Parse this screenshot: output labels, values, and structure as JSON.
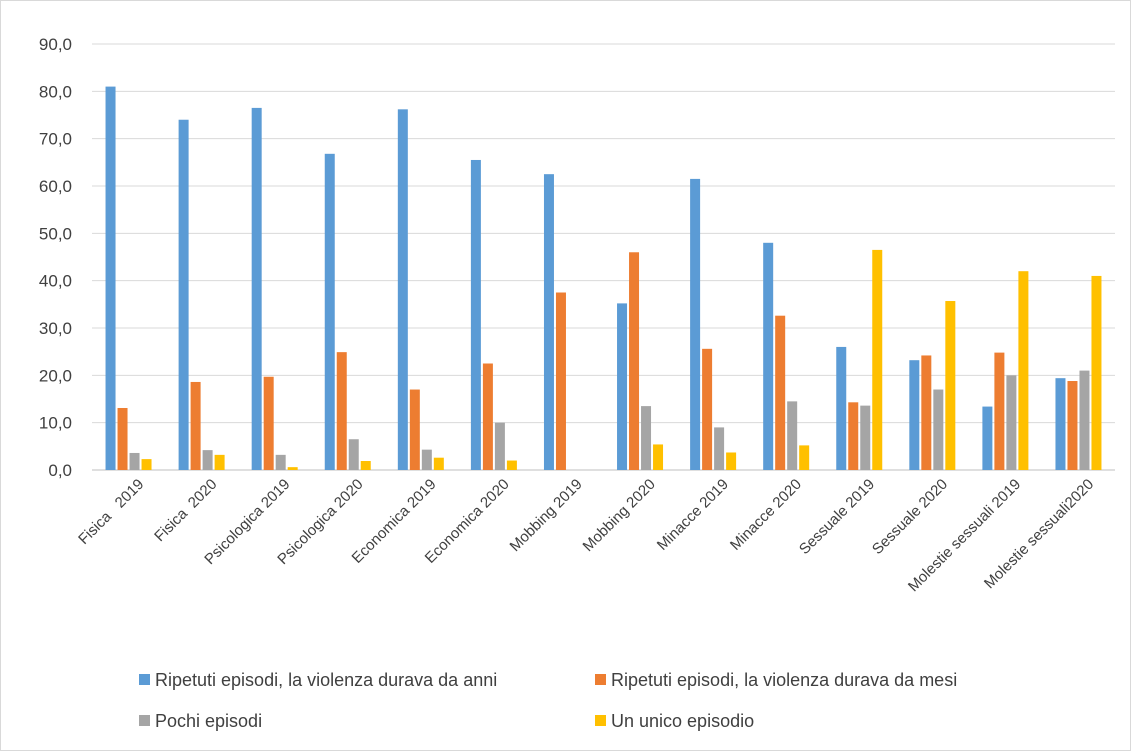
{
  "chart_data": {
    "type": "bar",
    "title": "",
    "xlabel": "",
    "ylabel": "",
    "ylim": [
      0,
      90
    ],
    "yticks": [
      "0,0",
      "10,0",
      "20,0",
      "30,0",
      "40,0",
      "50,0",
      "60,0",
      "70,0",
      "80,0",
      "90,0"
    ],
    "ytick_values": [
      0,
      10,
      20,
      30,
      40,
      50,
      60,
      70,
      80,
      90
    ],
    "grid": true,
    "legend_position": "bottom",
    "categories": [
      "Fisica   2019",
      "Fisica  2020",
      "Psicologica 2019",
      "Psicologica 2020",
      "Economica 2019",
      "Economica 2020",
      "Mobbing 2019",
      "Mobbing 2020",
      "Minacce 2019",
      "Minacce 2020",
      "Sessuale 2019",
      "Sessuale 2020",
      "Molestie sessuali 2019",
      "Molestie sessuali2020"
    ],
    "series": [
      {
        "name": "Ripetuti episodi, la violenza durava da anni",
        "color": "#5b9bd5",
        "values": [
          81.0,
          74.0,
          76.5,
          66.8,
          76.2,
          65.5,
          62.5,
          35.2,
          61.5,
          48.0,
          26.0,
          23.2,
          13.4,
          19.4
        ]
      },
      {
        "name": "Ripetuti episodi, la violenza durava da mesi",
        "color": "#ed7d31",
        "values": [
          13.1,
          18.6,
          19.7,
          24.9,
          17.0,
          22.5,
          37.5,
          46.0,
          25.6,
          32.6,
          14.3,
          24.2,
          24.8,
          18.8
        ]
      },
      {
        "name": "Pochi episodi",
        "color": "#a5a5a5",
        "values": [
          3.6,
          4.2,
          3.2,
          6.5,
          4.3,
          10.0,
          0,
          13.5,
          9.0,
          14.5,
          13.6,
          17.0,
          20.0,
          21.0
        ]
      },
      {
        "name": "Un unico episodio",
        "color": "#ffc000",
        "values": [
          2.3,
          3.2,
          0.6,
          1.9,
          2.6,
          2.0,
          0,
          5.4,
          3.7,
          5.2,
          46.5,
          35.7,
          42.0,
          41.0
        ]
      }
    ]
  }
}
